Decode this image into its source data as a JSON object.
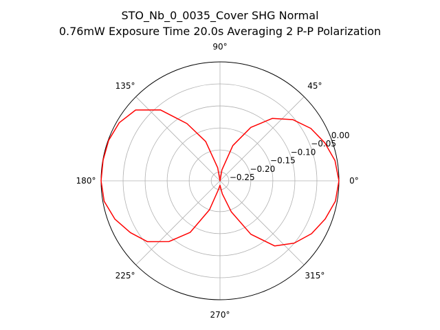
{
  "chart_data": {
    "type": "line",
    "subtype": "polar",
    "title_line1": "STO_Nb_0_0035_Cover SHG Normal",
    "title_line2": "0.76mW Exposure Time 20.0s Averaging 2 P-P  Polarization",
    "angle_ticks": [
      "0°",
      "45°",
      "90°",
      "135°",
      "180°",
      "225°",
      "270°",
      "315°"
    ],
    "angle_tick_values_deg": [
      0,
      45,
      90,
      135,
      180,
      225,
      270,
      315
    ],
    "radial_ticks": [
      "−0.25",
      "−0.20",
      "−0.15",
      "−0.10",
      "−0.05",
      "0.00"
    ],
    "radial_tick_values": [
      -0.25,
      -0.2,
      -0.15,
      -0.1,
      -0.05,
      0.0
    ],
    "rlim": [
      -0.27,
      0.0
    ],
    "radial_label_angle_deg": 22.5,
    "grid": true,
    "series": [
      {
        "color": "#ff0000",
        "theta_deg": [
          0,
          10,
          20,
          30,
          40,
          50,
          60,
          70,
          80,
          90,
          100,
          110,
          120,
          130,
          140,
          150,
          160,
          170,
          180,
          190,
          200,
          210,
          220,
          230,
          240,
          250,
          260,
          270,
          280,
          290,
          300,
          310,
          320,
          330,
          340,
          350,
          360
        ],
        "r": [
          0.0,
          -0.005,
          -0.017,
          -0.032,
          -0.054,
          -0.085,
          -0.13,
          -0.185,
          -0.245,
          -0.27,
          -0.24,
          -0.175,
          -0.12,
          -0.06,
          -0.02,
          -0.006,
          -0.001,
          -0.0005,
          0.0,
          -0.003,
          -0.016,
          -0.035,
          -0.055,
          -0.09,
          -0.135,
          -0.2,
          -0.25,
          -0.26,
          -0.24,
          -0.195,
          -0.13,
          -0.077,
          -0.05,
          -0.03,
          -0.016,
          -0.004,
          0.0
        ]
      }
    ]
  }
}
